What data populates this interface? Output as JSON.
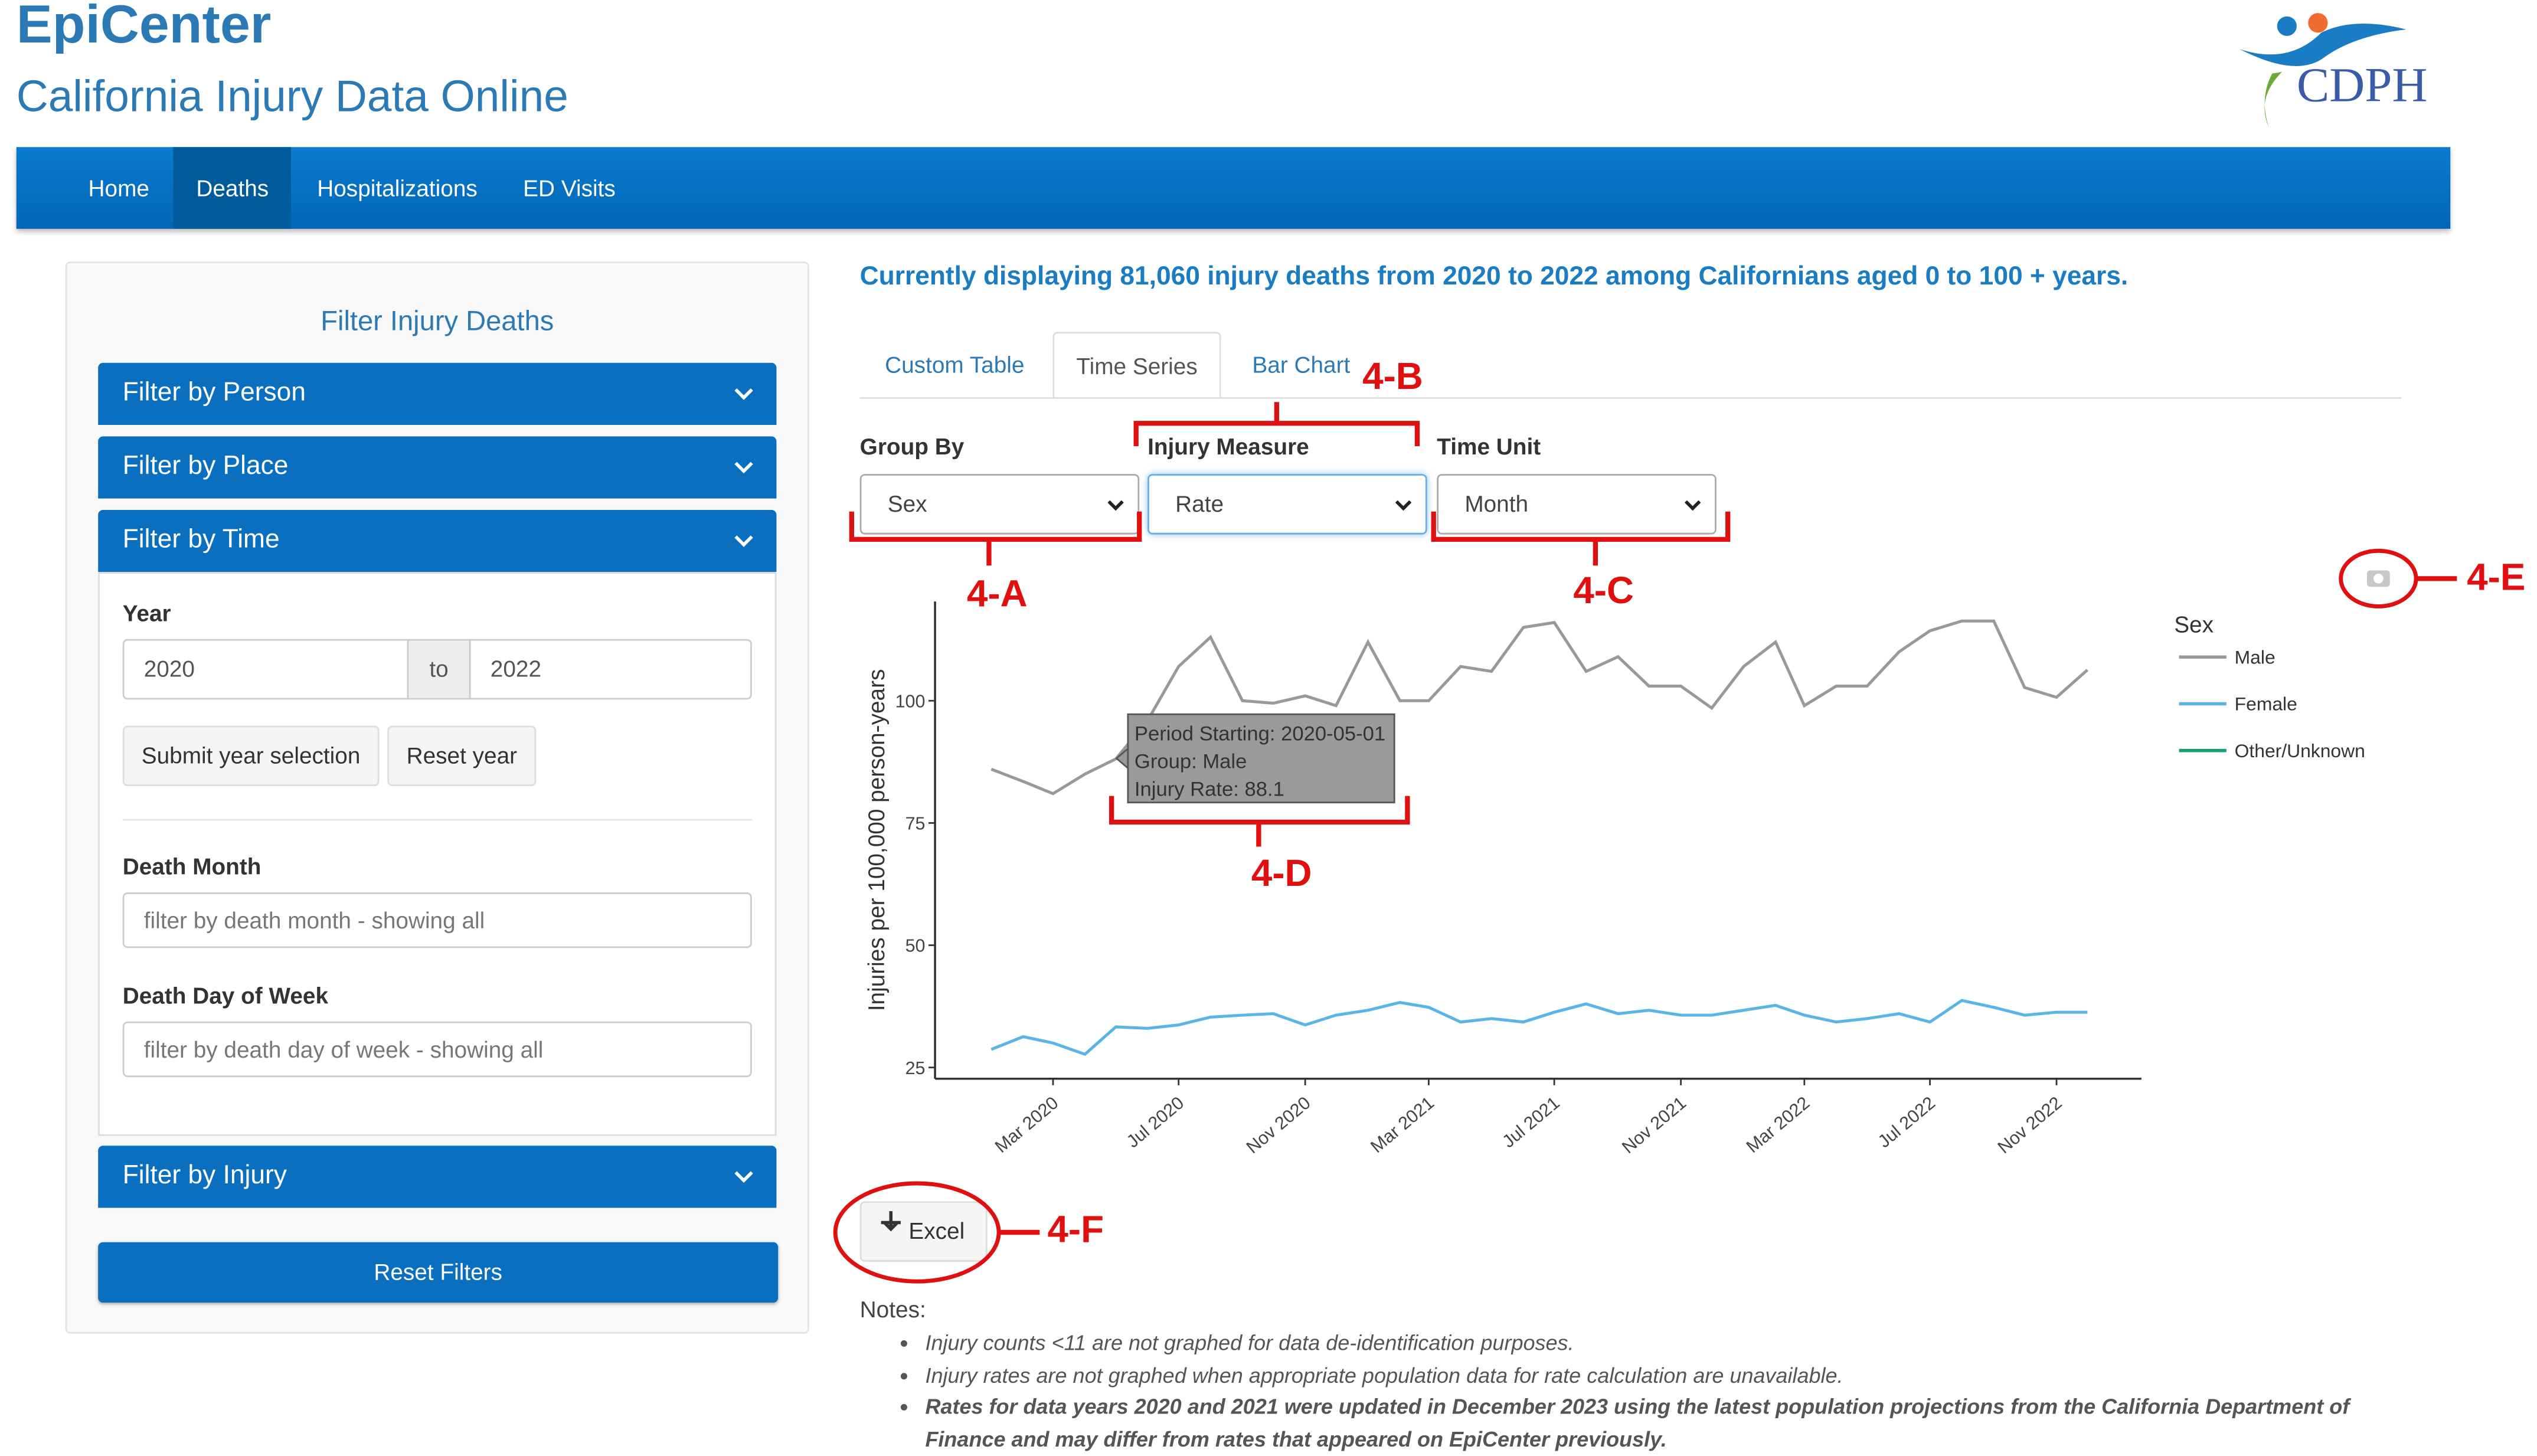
{
  "header": {
    "title": "EpiCenter",
    "subtitle": "California Injury Data Online",
    "logo_text": "CDPH"
  },
  "nav": [
    "Home",
    "Deaths",
    "Hospitalizations",
    "ED Visits"
  ],
  "sidebar": {
    "title": "Filter Injury Deaths",
    "panels": [
      "Filter by Person",
      "Filter by Place",
      "Filter by Time"
    ],
    "year_label": "Year",
    "year_from": "2020",
    "year_sep": "to",
    "year_to": "2022",
    "buttons": [
      "Submit year selection",
      "Reset year"
    ],
    "month_label": "Death Month",
    "month_placeholder": "filter by death month - showing all",
    "dow_label": "Death Day of Week",
    "dow_placeholder": "filter by death day of week - showing all",
    "injury_panel": "Filter by Injury",
    "reset": "Reset Filters"
  },
  "main": {
    "summary": "Currently displaying 81,060 injury deaths from 2020 to 2022 among Californians aged 0 to 100 + years.",
    "tabs": [
      "Custom Table",
      "Time Series",
      "Bar Chart"
    ],
    "controls": [
      {
        "label": "Group By",
        "value": "Sex"
      },
      {
        "label": "Injury Measure",
        "value": "Rate"
      },
      {
        "label": "Time Unit",
        "value": "Month"
      }
    ],
    "excel": "Excel",
    "notes_title": "Notes:",
    "notes": [
      "Injury counts <11 are not graphed for data de-identification purposes.",
      "Injury rates are not graphed when appropriate population data for rate calculation are unavailable.",
      "Rates for data years 2020 and 2021 were updated in December 2023 using the latest population projections from the California Department of Finance and may differ from rates that appeared on EpiCenter previously."
    ],
    "callouts": [
      "4-A",
      "4-B",
      "4-C",
      "4-D",
      "4-E",
      "4-F"
    ]
  },
  "chart_data": {
    "type": "line",
    "y_label": "Injuries per 100,000 person-years",
    "legend_title": "Sex",
    "x": [
      "2020-01",
      "2020-02",
      "2020-03",
      "2020-04",
      "2020-05",
      "2020-06",
      "2020-07",
      "2020-08",
      "2020-09",
      "2020-10",
      "2020-11",
      "2020-12",
      "2021-01",
      "2021-02",
      "2021-03",
      "2021-04",
      "2021-05",
      "2021-06",
      "2021-07",
      "2021-08",
      "2021-09",
      "2021-10",
      "2021-11",
      "2021-12",
      "2022-01",
      "2022-02",
      "2022-03",
      "2022-04",
      "2022-05",
      "2022-06",
      "2022-07",
      "2022-08",
      "2022-09",
      "2022-10",
      "2022-11",
      "2022-12"
    ],
    "xlim": [
      "2019-11",
      "2023-02"
    ],
    "xticks": [
      {
        "value": "2020-03",
        "label": "Mar 2020"
      },
      {
        "value": "2020-07",
        "label": "Jul 2020"
      },
      {
        "value": "2020-11",
        "label": "Nov 2020"
      },
      {
        "value": "2021-03",
        "label": "Mar 2021"
      },
      {
        "value": "2021-07",
        "label": "Jul 2021"
      },
      {
        "value": "2021-11",
        "label": "Nov 2021"
      },
      {
        "value": "2022-03",
        "label": "Mar 2022"
      },
      {
        "value": "2022-07",
        "label": "Jul 2022"
      },
      {
        "value": "2022-11",
        "label": "Nov 2022"
      }
    ],
    "ylim": [
      22.7,
      120.3
    ],
    "yticks": [
      25,
      50,
      75,
      100
    ],
    "series": [
      {
        "name": "Male",
        "color": "#999999",
        "values": [
          86,
          83.5,
          81,
          85,
          88.1,
          96,
          107,
          113,
          100,
          99.5,
          101,
          99,
          112,
          100,
          100,
          107,
          106,
          115,
          116,
          106,
          109,
          103,
          103,
          98.5,
          107,
          112,
          99,
          103,
          103,
          110,
          114.3,
          116.3,
          116.3,
          102.7,
          100.7,
          106.3
        ]
      },
      {
        "name": "Female",
        "color": "#5ab4e5",
        "values": [
          28.7,
          31.3,
          30,
          27.7,
          33.3,
          33,
          33.7,
          35.3,
          35.7,
          36,
          33.7,
          35.7,
          36.7,
          38.3,
          37.3,
          34.3,
          35,
          34.3,
          36.3,
          38,
          36,
          36.7,
          35.7,
          35.7,
          36.7,
          37.7,
          35.7,
          34.3,
          35,
          36,
          34.3,
          38.7,
          37.3,
          35.7,
          36.3,
          36.3
        ]
      },
      {
        "name": "Other/Unknown",
        "color": "#1a9e77",
        "values": [
          null,
          null,
          null,
          null,
          null,
          null,
          null,
          null,
          null,
          null,
          null,
          null,
          null,
          null,
          null,
          null,
          null,
          null,
          null,
          null,
          null,
          null,
          null,
          null,
          null,
          null,
          null,
          null,
          null,
          null,
          null,
          null,
          null,
          null,
          null,
          null
        ]
      }
    ],
    "tooltip": [
      "Period Starting: 2020-05-01",
      "Group: Male",
      "Injury Rate: 88.1"
    ]
  }
}
